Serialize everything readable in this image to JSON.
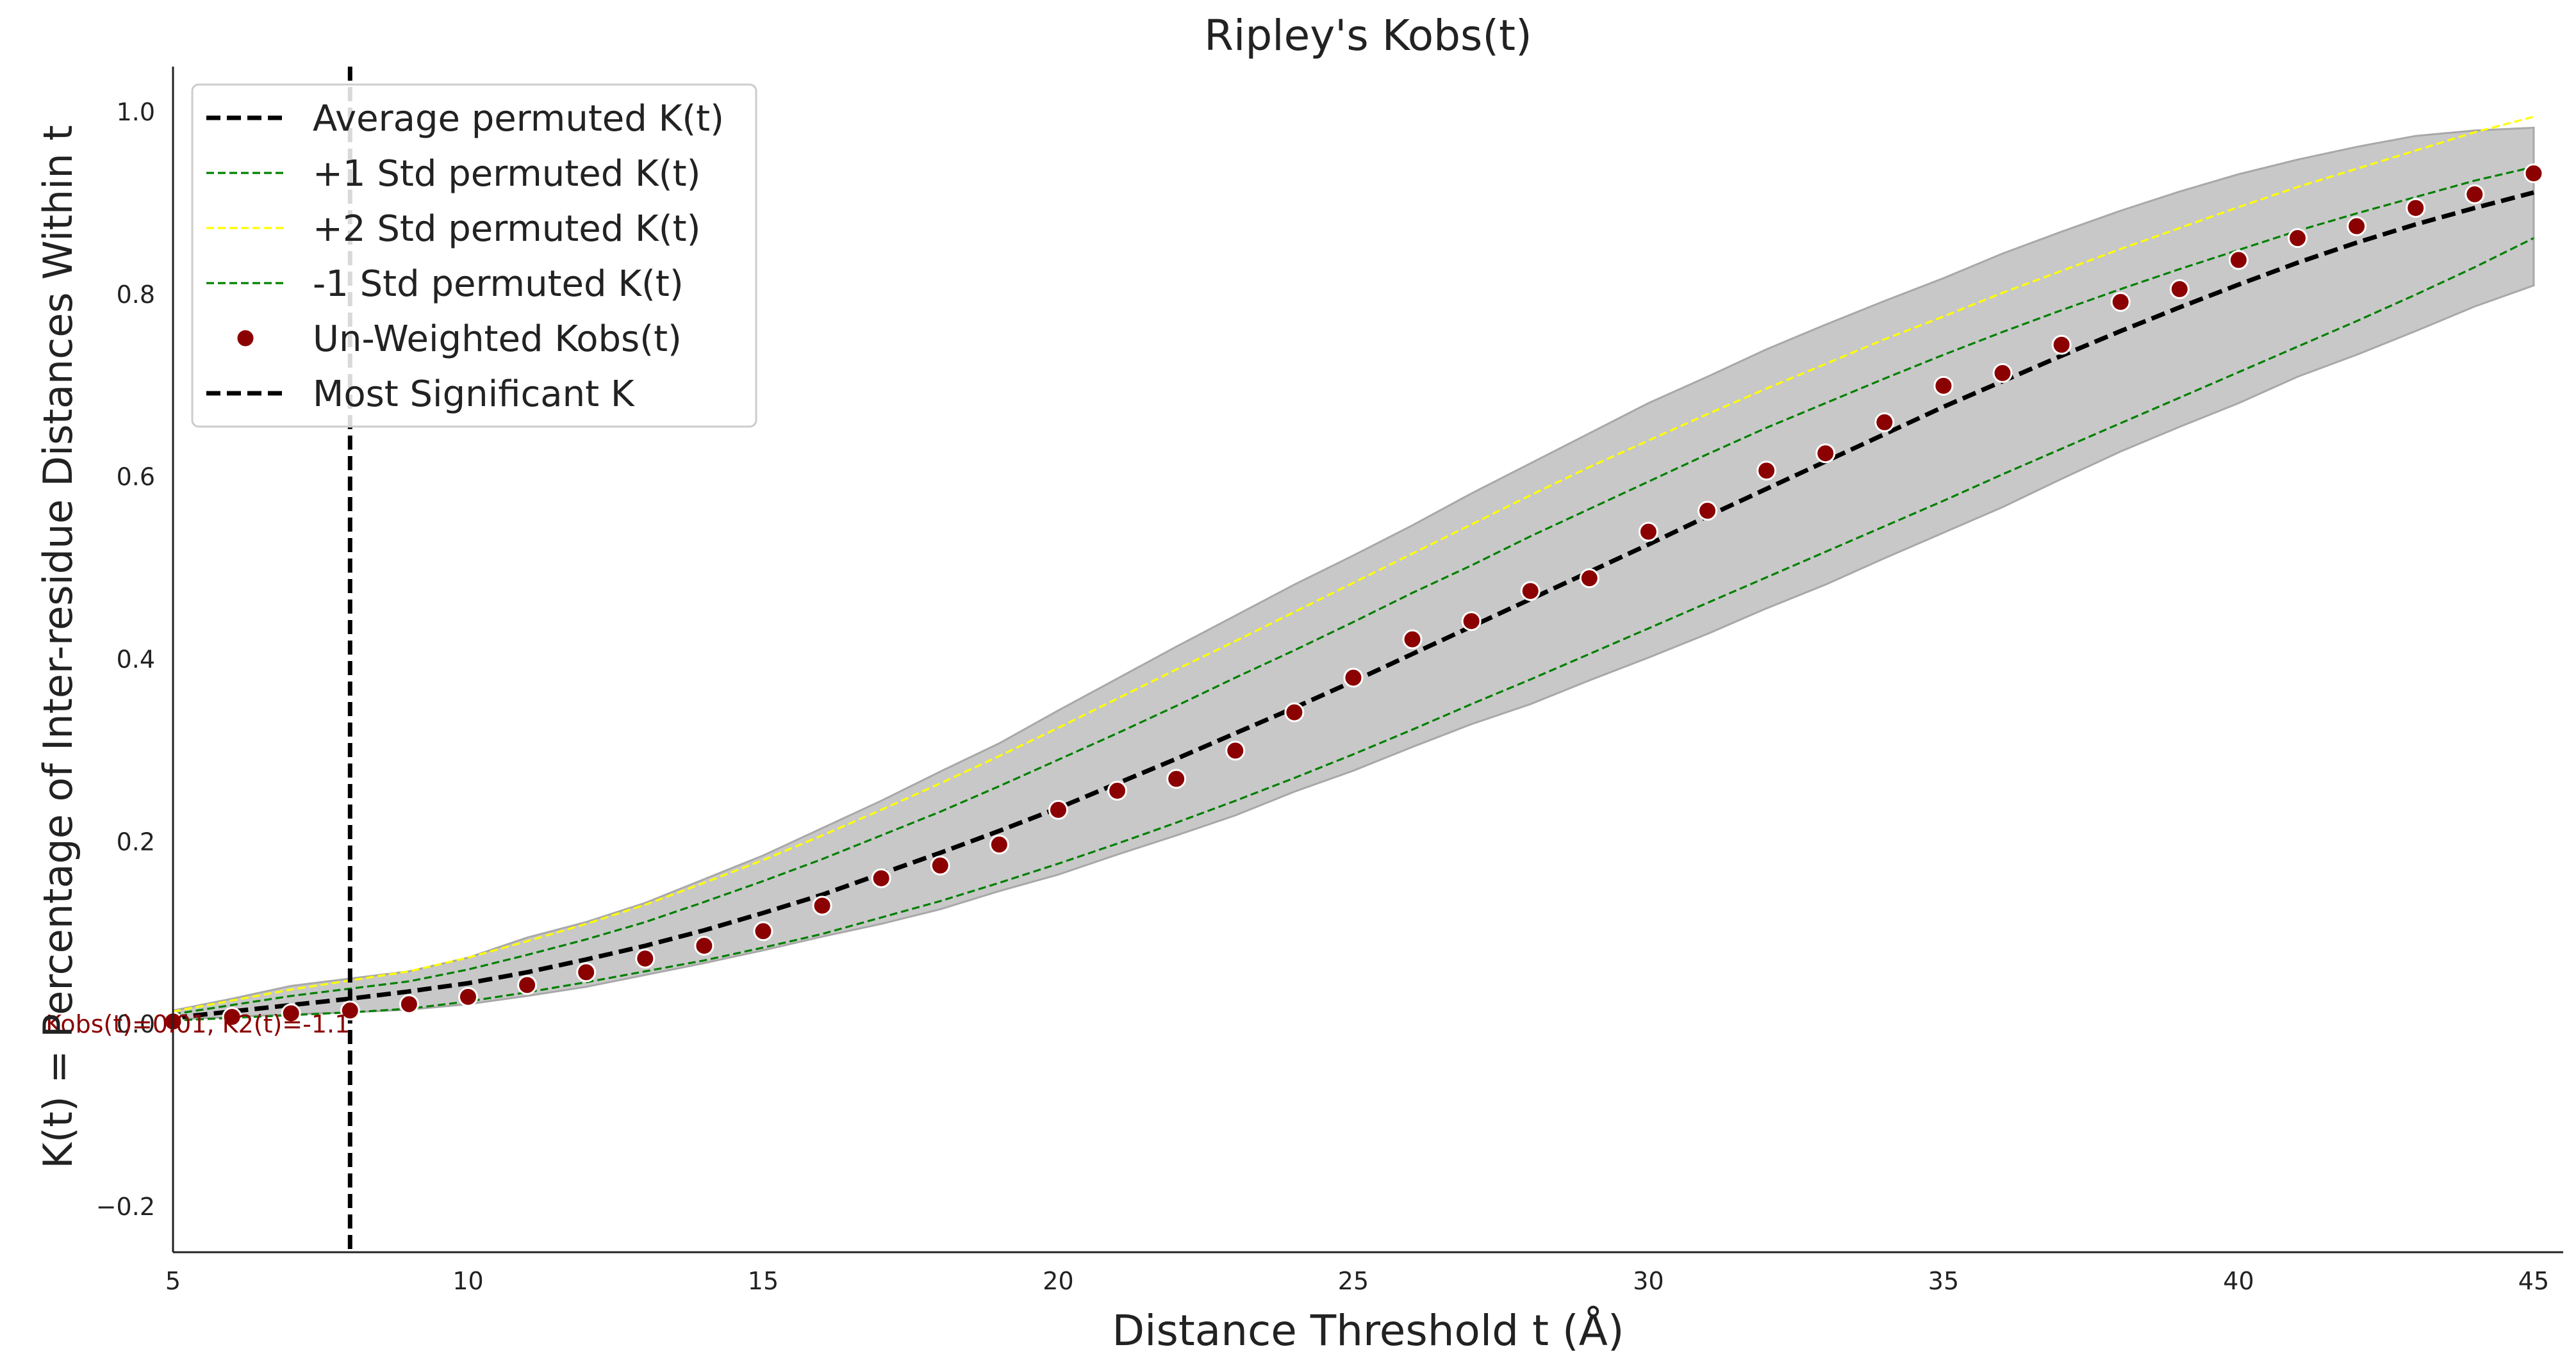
{
  "chart_data": {
    "type": "line",
    "title": "Ripley's Kobs(t)",
    "xlabel": "Distance Threshold t (Å)",
    "ylabel": "K(t) = Percentage of Inter-residue Distances Within t",
    "xlim": [
      5,
      45.5
    ],
    "ylim": [
      -0.25,
      1.05
    ],
    "x_ticks": [
      5,
      10,
      15,
      20,
      25,
      30,
      35,
      40,
      45
    ],
    "y_ticks": [
      -0.2,
      0.0,
      0.2,
      0.4,
      0.6,
      0.8,
      1.0
    ],
    "y_tick_labels": [
      "−0.2",
      "0.0",
      "0.2",
      "0.4",
      "0.6",
      "0.8",
      "1.0"
    ],
    "grid": false,
    "legend_position": "top-left",
    "x": [
      5,
      6,
      7,
      8,
      9,
      10,
      11,
      12,
      13,
      14,
      15,
      16,
      17,
      18,
      19,
      20,
      21,
      22,
      23,
      24,
      25,
      26,
      27,
      28,
      29,
      30,
      31,
      32,
      33,
      34,
      35,
      36,
      37,
      38,
      39,
      40,
      41,
      42,
      43,
      44,
      45
    ],
    "band": {
      "name": "",
      "upper": [
        0.015,
        0.028,
        0.042,
        0.05,
        0.058,
        0.073,
        0.095,
        0.112,
        0.133,
        0.159,
        0.185,
        0.215,
        0.245,
        0.277,
        0.308,
        0.344,
        0.379,
        0.414,
        0.448,
        0.482,
        0.514,
        0.547,
        0.582,
        0.615,
        0.648,
        0.681,
        0.71,
        0.74,
        0.767,
        0.793,
        0.818,
        0.845,
        0.869,
        0.892,
        0.913,
        0.932,
        0.948,
        0.962,
        0.974,
        0.98,
        0.983
      ],
      "lower": [
        0.005,
        0.008,
        0.011,
        0.013,
        0.016,
        0.022,
        0.031,
        0.041,
        0.054,
        0.067,
        0.081,
        0.096,
        0.11,
        0.126,
        0.146,
        0.164,
        0.186,
        0.207,
        0.229,
        0.255,
        0.278,
        0.304,
        0.329,
        0.351,
        0.377,
        0.402,
        0.428,
        0.456,
        0.482,
        0.511,
        0.539,
        0.567,
        0.598,
        0.628,
        0.655,
        0.681,
        0.71,
        0.734,
        0.76,
        0.787,
        0.81
      ],
      "color": "#c8c8c8"
    },
    "series": [
      {
        "name": "Average permuted K(t)",
        "style": "dashed-thick",
        "color": "#000000",
        "values": [
          0.007,
          0.014,
          0.021,
          0.028,
          0.036,
          0.045,
          0.057,
          0.071,
          0.086,
          0.103,
          0.122,
          0.142,
          0.165,
          0.188,
          0.212,
          0.237,
          0.264,
          0.291,
          0.319,
          0.347,
          0.376,
          0.406,
          0.436,
          0.466,
          0.496,
          0.526,
          0.557,
          0.587,
          0.617,
          0.647,
          0.677,
          0.705,
          0.733,
          0.76,
          0.786,
          0.811,
          0.835,
          0.857,
          0.877,
          0.895,
          0.912
        ]
      },
      {
        "name": "+1 Std permuted K(t)",
        "style": "dashed-thin",
        "color": "#008000",
        "values": [
          0.011,
          0.021,
          0.031,
          0.039,
          0.047,
          0.06,
          0.076,
          0.093,
          0.112,
          0.134,
          0.157,
          0.181,
          0.207,
          0.233,
          0.261,
          0.29,
          0.319,
          0.349,
          0.38,
          0.41,
          0.441,
          0.473,
          0.503,
          0.535,
          0.565,
          0.595,
          0.625,
          0.654,
          0.681,
          0.708,
          0.734,
          0.759,
          0.783,
          0.806,
          0.828,
          0.849,
          0.87,
          0.889,
          0.907,
          0.925,
          0.94
        ]
      },
      {
        "name": "+2 Std permuted K(t)",
        "style": "dashed-thin",
        "color": "#ffff00",
        "values": [
          0.014,
          0.026,
          0.038,
          0.048,
          0.058,
          0.073,
          0.091,
          0.11,
          0.131,
          0.155,
          0.18,
          0.207,
          0.235,
          0.264,
          0.294,
          0.325,
          0.357,
          0.389,
          0.42,
          0.452,
          0.484,
          0.516,
          0.548,
          0.58,
          0.611,
          0.64,
          0.669,
          0.697,
          0.724,
          0.751,
          0.776,
          0.802,
          0.826,
          0.85,
          0.873,
          0.896,
          0.918,
          0.938,
          0.958,
          0.978,
          0.995
        ]
      },
      {
        "name": "-1 Std permuted K(t)",
        "style": "dashed-thin",
        "color": "#008000",
        "values": [
          0.004,
          0.007,
          0.01,
          0.013,
          0.017,
          0.025,
          0.035,
          0.046,
          0.058,
          0.07,
          0.084,
          0.099,
          0.117,
          0.135,
          0.155,
          0.176,
          0.198,
          0.221,
          0.245,
          0.27,
          0.296,
          0.323,
          0.351,
          0.378,
          0.406,
          0.434,
          0.462,
          0.49,
          0.518,
          0.546,
          0.574,
          0.603,
          0.631,
          0.659,
          0.687,
          0.715,
          0.743,
          0.771,
          0.8,
          0.83,
          0.862
        ]
      }
    ],
    "scatter": {
      "name": "Un-Weighted Kobs(t)",
      "color": "#8b0000",
      "values": [
        0.003,
        0.008,
        0.012,
        0.015,
        0.022,
        0.03,
        0.043,
        0.057,
        0.072,
        0.086,
        0.102,
        0.13,
        0.16,
        0.174,
        0.197,
        0.235,
        0.256,
        0.269,
        0.3,
        0.342,
        0.38,
        0.422,
        0.442,
        0.475,
        0.489,
        0.54,
        0.563,
        0.607,
        0.626,
        0.66,
        0.7,
        0.714,
        0.745,
        0.792,
        0.806,
        0.838,
        0.862,
        0.875,
        0.895,
        0.91,
        0.933
      ]
    },
    "vline": {
      "name": "Most Significant K",
      "x": 8,
      "color": "#000000"
    },
    "annotation": {
      "text": "Kobs(t)=0.01, K2(t)=-1.1",
      "color": "#8b0000",
      "x": 8,
      "y": 0.0
    },
    "legend_entries": [
      "Average permuted K(t)",
      "+1 Std permuted K(t)",
      "+2 Std permuted K(t)",
      "-1 Std permuted K(t)",
      "Un-Weighted Kobs(t)",
      "Most Significant K"
    ]
  }
}
